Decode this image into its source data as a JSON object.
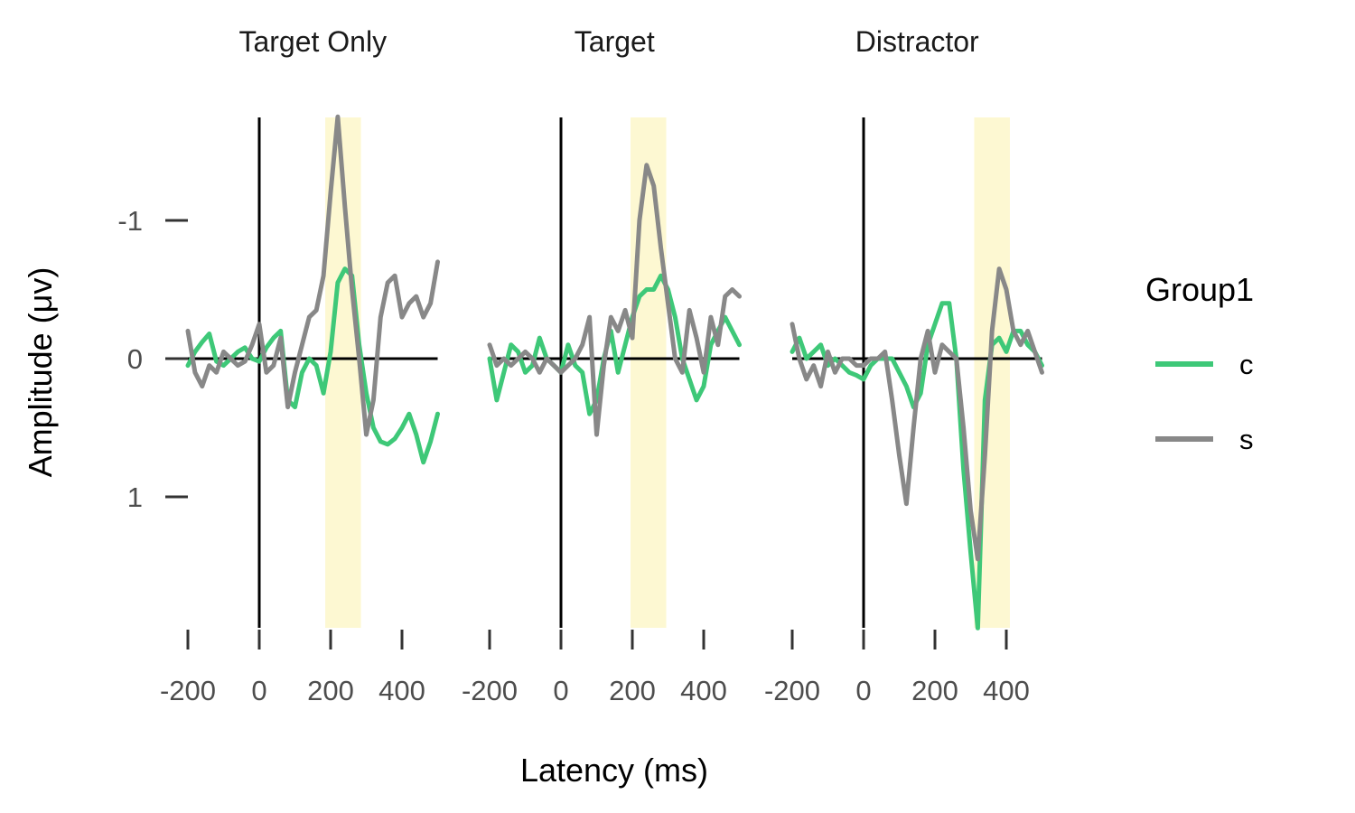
{
  "chart_data": {
    "type": "line",
    "xlabel": "Latency (ms)",
    "ylabel": "Amplitude (μv)",
    "ylim_reversed": true,
    "ylim": [
      -1.75,
      1.95
    ],
    "xlim": [
      -205,
      505
    ],
    "y_ticks": [
      -1,
      0,
      1
    ],
    "x_ticks": [
      -200,
      0,
      200,
      400
    ],
    "x_tick_labels": [
      "-200",
      "0",
      "200",
      "400"
    ],
    "y_tick_labels": [
      "-1",
      "0",
      "1"
    ],
    "reference_lines": {
      "x": 0,
      "y": 0
    },
    "legend": {
      "title": "Group1",
      "position": "right",
      "entries": [
        {
          "label": "c",
          "color": "#3ec878"
        },
        {
          "label": "s",
          "color": "#888888"
        }
      ]
    },
    "panels": [
      {
        "title": "Target Only",
        "highlight": [
          185,
          285
        ],
        "x": [
          -200,
          -180,
          -160,
          -140,
          -120,
          -100,
          -80,
          -60,
          -40,
          -20,
          0,
          20,
          40,
          60,
          80,
          100,
          120,
          140,
          160,
          180,
          200,
          220,
          240,
          260,
          280,
          300,
          320,
          340,
          360,
          380,
          400,
          420,
          440,
          460,
          480,
          500
        ],
        "series": [
          {
            "name": "c",
            "values": [
              0.05,
              -0.05,
              -0.12,
              -0.18,
              0.02,
              0.05,
              0.0,
              -0.05,
              -0.08,
              0.0,
              0.02,
              -0.08,
              -0.15,
              -0.2,
              0.3,
              0.35,
              0.1,
              0.0,
              0.05,
              0.25,
              -0.05,
              -0.55,
              -0.65,
              -0.6,
              -0.1,
              0.25,
              0.5,
              0.6,
              0.62,
              0.58,
              0.5,
              0.4,
              0.55,
              0.75,
              0.6,
              0.4
            ]
          },
          {
            "name": "s",
            "values": [
              -0.2,
              0.1,
              0.2,
              0.05,
              0.1,
              -0.05,
              0.0,
              0.05,
              0.02,
              -0.1,
              -0.25,
              0.1,
              0.05,
              -0.15,
              0.35,
              0.1,
              -0.1,
              -0.3,
              -0.35,
              -0.6,
              -1.2,
              -1.75,
              -1.1,
              -0.5,
              0.0,
              0.55,
              0.3,
              -0.3,
              -0.55,
              -0.6,
              -0.3,
              -0.4,
              -0.45,
              -0.3,
              -0.4,
              -0.7
            ]
          }
        ]
      },
      {
        "title": "Target",
        "highlight": [
          195,
          295
        ],
        "x": [
          -200,
          -180,
          -160,
          -140,
          -120,
          -100,
          -80,
          -60,
          -40,
          -20,
          0,
          20,
          40,
          60,
          80,
          100,
          120,
          140,
          160,
          180,
          200,
          220,
          240,
          260,
          280,
          300,
          320,
          340,
          360,
          380,
          400,
          420,
          440,
          460,
          480,
          500
        ],
        "series": [
          {
            "name": "c",
            "values": [
              0.0,
              0.3,
              0.1,
              -0.1,
              -0.05,
              0.1,
              0.05,
              -0.15,
              0.0,
              0.05,
              0.1,
              -0.1,
              0.05,
              0.1,
              0.4,
              0.3,
              0.0,
              -0.2,
              0.1,
              -0.1,
              -0.3,
              -0.45,
              -0.5,
              -0.5,
              -0.6,
              -0.5,
              -0.3,
              0.0,
              0.15,
              0.3,
              0.2,
              -0.1,
              -0.2,
              -0.3,
              -0.2,
              -0.1
            ]
          },
          {
            "name": "s",
            "values": [
              -0.1,
              0.05,
              0.0,
              0.05,
              0.0,
              -0.05,
              0.0,
              0.1,
              0.0,
              0.05,
              0.1,
              0.05,
              0.0,
              -0.1,
              -0.3,
              0.55,
              0.05,
              -0.3,
              -0.2,
              -0.35,
              -0.15,
              -1.0,
              -1.4,
              -1.25,
              -0.8,
              -0.4,
              0.0,
              0.1,
              -0.35,
              -0.15,
              0.1,
              -0.3,
              -0.1,
              -0.45,
              -0.5,
              -0.45
            ]
          }
        ]
      },
      {
        "title": "Distractor",
        "highlight": [
          310,
          410
        ],
        "x": [
          -200,
          -180,
          -160,
          -140,
          -120,
          -100,
          -80,
          -60,
          -40,
          -20,
          0,
          20,
          40,
          60,
          80,
          100,
          120,
          140,
          160,
          180,
          200,
          220,
          240,
          260,
          280,
          300,
          320,
          340,
          360,
          380,
          400,
          420,
          440,
          460,
          480,
          500
        ],
        "series": [
          {
            "name": "c",
            "values": [
              -0.05,
              -0.15,
              0.0,
              -0.05,
              -0.1,
              0.05,
              0.0,
              0.05,
              0.1,
              0.12,
              0.15,
              0.05,
              0.0,
              0.0,
              0.0,
              0.1,
              0.2,
              0.35,
              0.25,
              -0.1,
              -0.25,
              -0.4,
              -0.4,
              0.0,
              0.8,
              1.4,
              1.95,
              0.3,
              -0.1,
              -0.15,
              -0.05,
              -0.2,
              -0.2,
              -0.1,
              -0.05,
              0.05
            ]
          },
          {
            "name": "s",
            "values": [
              -0.25,
              0.0,
              0.15,
              0.05,
              0.2,
              -0.05,
              0.1,
              0.0,
              0.0,
              0.05,
              0.05,
              0.0,
              0.0,
              -0.05,
              0.3,
              0.7,
              1.05,
              0.5,
              0.0,
              -0.2,
              0.1,
              -0.1,
              -0.05,
              0.0,
              0.5,
              1.1,
              1.45,
              0.7,
              -0.2,
              -0.65,
              -0.5,
              -0.2,
              -0.1,
              -0.2,
              -0.05,
              0.1
            ]
          }
        ]
      }
    ]
  }
}
